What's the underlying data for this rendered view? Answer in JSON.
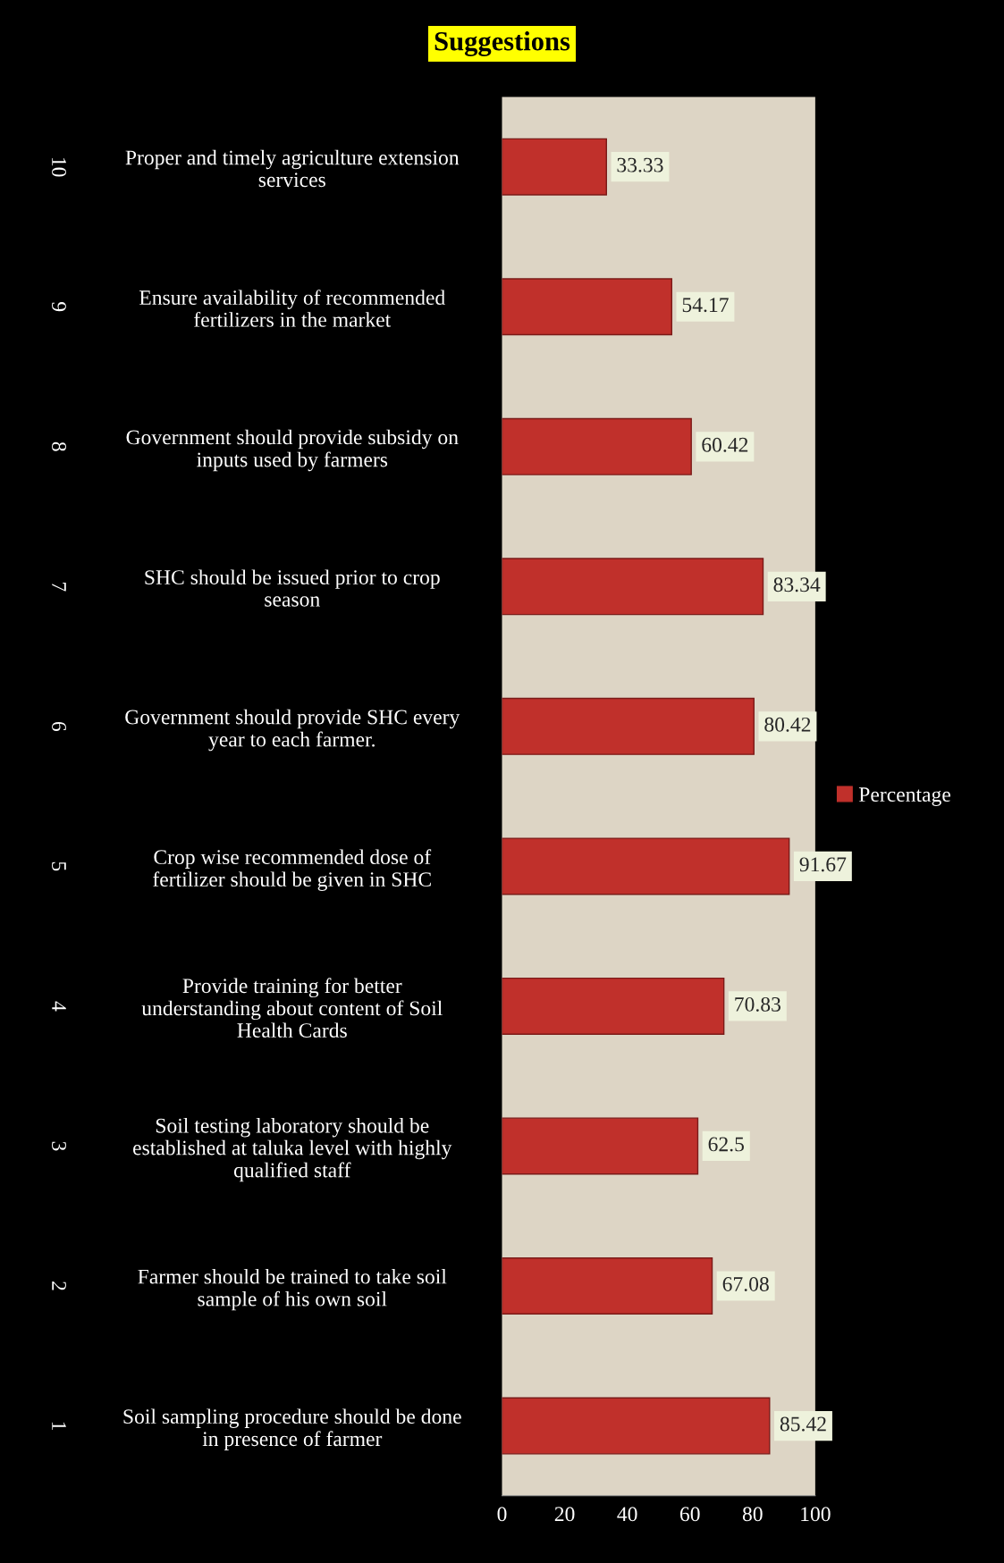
{
  "chart_data": {
    "type": "bar",
    "orientation": "horizontal",
    "title": "Suggestions",
    "categories": [
      "Proper and timely agriculture extension\nservices",
      "Ensure availability of recommended\nfertilizers in the market",
      "Government should provide subsidy on\ninputs used by farmers",
      "SHC should be issued prior to crop\nseason",
      "Government should provide SHC every\nyear to each farmer.",
      "Crop wise recommended dose of\nfertilizer should be given in SHC",
      "Provide training for better\nunderstanding about content of Soil\nHealth Cards",
      "Soil testing laboratory should be\nestablished at taluka level with highly\nqualified staff",
      "Farmer should be trained to take soil\nsample of his own soil",
      "Soil sampling procedure should be done\nin presence of farmer"
    ],
    "annotations": [
      "10",
      "9",
      "8",
      "7",
      "6",
      "5",
      "4",
      "3",
      "2",
      "1"
    ],
    "series": [
      {
        "name": "Percentage",
        "color": "#c0302b",
        "values": [
          33.33,
          54.17,
          60.42,
          83.34,
          80.42,
          91.67,
          70.83,
          62.5,
          67.08,
          85.42
        ]
      }
    ],
    "xlim": [
      0,
      100
    ],
    "xticks": [
      0,
      20,
      40,
      60,
      80,
      100
    ],
    "data_labels": true,
    "legend": "right",
    "grid": false
  }
}
